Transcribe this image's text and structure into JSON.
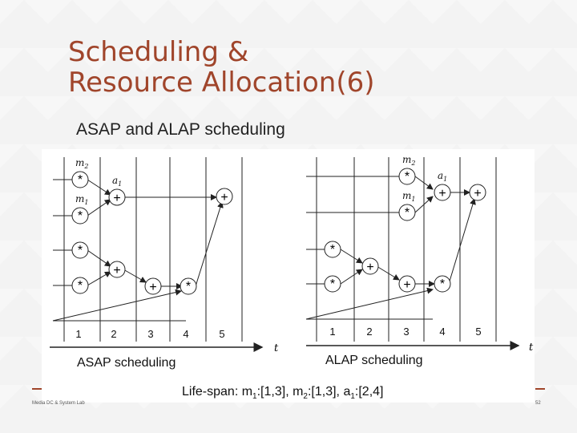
{
  "slide": {
    "title_line1": "Scheduling &",
    "title_line2": "Resource Allocation(6)",
    "subtitle": "ASAP and ALAP scheduling",
    "footer_left": "Media DC & System Lab",
    "page_number": "52",
    "accent_color": "#a0452b"
  },
  "diagram": {
    "asap": {
      "caption": "ASAP scheduling",
      "steps": [
        "1",
        "2",
        "3",
        "4",
        "5"
      ],
      "axis_label": "t",
      "op_labels": {
        "m2": "m",
        "m2_sub": "2",
        "m1": "m",
        "m1_sub": "1",
        "a1": "a",
        "a1_sub": "1"
      }
    },
    "alap": {
      "caption": "ALAP scheduling",
      "steps": [
        "1",
        "2",
        "3",
        "4",
        "5"
      ],
      "axis_label": "t",
      "op_labels": {
        "m2": "m",
        "m2_sub": "2",
        "m1": "m",
        "m1_sub": "1",
        "a1": "a",
        "a1_sub": "1"
      }
    },
    "lifespan": {
      "prefix": "Life-span: ",
      "m1": "m",
      "m1_sub": "1",
      "m1_range": ":[1,3], ",
      "m2": "m",
      "m2_sub": "2",
      "m2_range": ":[1,3], ",
      "a1": "a",
      "a1_sub": "1",
      "a1_range": ":[2,4]"
    }
  }
}
